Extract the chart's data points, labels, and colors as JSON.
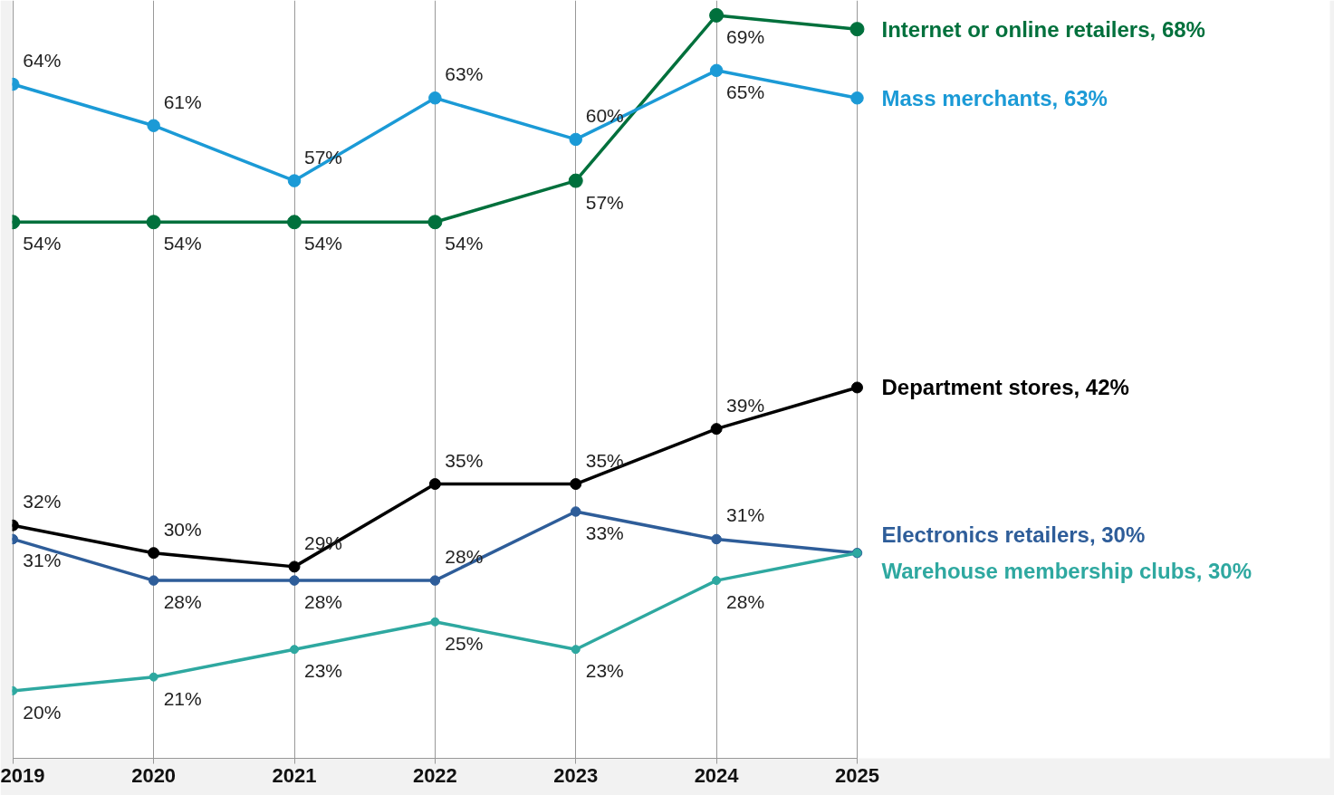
{
  "chart_data": {
    "type": "line",
    "categories": [
      "2019",
      "2020",
      "2021",
      "2022",
      "2023",
      "2024",
      "2025"
    ],
    "marker": "circle",
    "line_style": "solid",
    "grid": "x",
    "tick_labels": "x",
    "series": [
      {
        "name": "Internet or online retailers, 68%",
        "color": "#00703c",
        "values": [
          54,
          54,
          54,
          54,
          57,
          69,
          68
        ],
        "value_labels": [
          "54%",
          "54%",
          "54%",
          "54%",
          "57%",
          "69%",
          null
        ]
      },
      {
        "name": "Mass merchants, 63%",
        "color": "#1b9ad6",
        "values": [
          64,
          61,
          57,
          63,
          60,
          65,
          63
        ],
        "value_labels": [
          "64%",
          "61%",
          "57%",
          "63%",
          "60%",
          "65%",
          null
        ]
      },
      {
        "name": "Department stores, 42%",
        "color": "#000000",
        "values": [
          32,
          30,
          29,
          35,
          35,
          39,
          42
        ],
        "value_labels": [
          "32%",
          "30%",
          "29%",
          "35%",
          "35%",
          "39%",
          null
        ]
      },
      {
        "name": "Electronics retailers, 30%",
        "color": "#2e5d99",
        "values": [
          31,
          28,
          28,
          28,
          33,
          31,
          30
        ],
        "value_labels": [
          "31%",
          "28%",
          "28%",
          "28%",
          "33%",
          "31%",
          null
        ]
      },
      {
        "name": "Warehouse membership clubs, 30%",
        "color": "#2ea8a0",
        "values": [
          20,
          21,
          23,
          25,
          23,
          28,
          30
        ],
        "value_labels": [
          "20%",
          "21%",
          "23%",
          "25%",
          "23%",
          "28%",
          null
        ]
      }
    ]
  }
}
